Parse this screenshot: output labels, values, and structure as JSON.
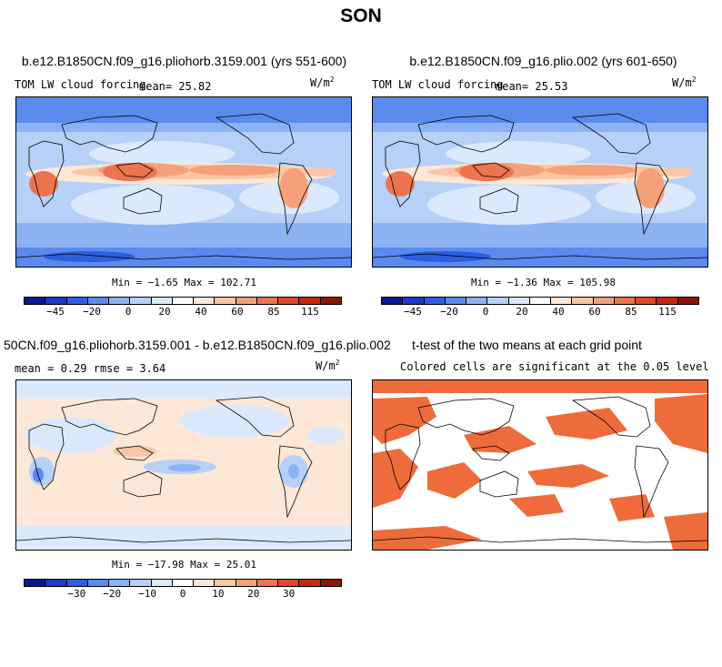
{
  "figure": {
    "title": "SON",
    "units_main": "W/m",
    "units_exp": "2"
  },
  "colors": {
    "scale": [
      "#0a1a8c",
      "#1a3ac8",
      "#2c5ee0",
      "#5a8aee",
      "#8cb2f4",
      "#b6d0f8",
      "#dce9fc",
      "#ffffff",
      "#fde7d6",
      "#f9c6a6",
      "#f4a07a",
      "#ec744e",
      "#de4a28",
      "#c22a10",
      "#8a1606"
    ],
    "sig": "#ee6c3c",
    "coast": "#000000"
  },
  "panels": {
    "p1": {
      "title": "b.e12.B1850CN.f09_g16.pliohorb.3159.001 (yrs 551-600)",
      "var": "TOM LW cloud forcing",
      "mean_label": "mean=",
      "mean": "25.82",
      "minmax": "Min =  −1.65 Max = 102.71",
      "ticks": [
        "−45",
        "−20",
        "0",
        "20",
        "40",
        "60",
        "85",
        "115"
      ],
      "chart_data": {
        "type": "heatmap",
        "field": "TOM LW cloud forcing",
        "mean": 25.82,
        "min": -1.65,
        "max": 102.71,
        "colorbar_levels": [
          -45,
          -20,
          0,
          20,
          40,
          60,
          85,
          115
        ]
      }
    },
    "p2": {
      "title": "b.e12.B1850CN.f09_g16.plio.002 (yrs 601-650)",
      "var": "TOM LW cloud forcing",
      "mean_label": "mean=",
      "mean": "25.53",
      "minmax": "Min =  −1.36 Max = 105.98",
      "ticks": [
        "−45",
        "−20",
        "0",
        "20",
        "40",
        "60",
        "85",
        "115"
      ],
      "chart_data": {
        "type": "heatmap",
        "field": "TOM LW cloud forcing",
        "mean": 25.53,
        "min": -1.36,
        "max": 105.98,
        "colorbar_levels": [
          -45,
          -20,
          0,
          20,
          40,
          60,
          85,
          115
        ]
      }
    },
    "p3": {
      "title": "50CN.f09_g16.pliohorb.3159.001 - b.e12.B1850CN.f09_g16.plio.002",
      "mean_label": "mean =",
      "mean": "0.29",
      "rmse_label": "rmse =",
      "rmse": "3.64",
      "minmax": "Min = −17.98 Max =  25.01",
      "ticks": [
        "−30",
        "−20",
        "−10",
        "0",
        "10",
        "20",
        "30"
      ],
      "chart_data": {
        "type": "heatmap",
        "field": "difference",
        "mean": 0.29,
        "rmse": 3.64,
        "min": -17.98,
        "max": 25.01,
        "colorbar_levels": [
          -30,
          -20,
          -10,
          0,
          10,
          20,
          30
        ]
      }
    },
    "p4": {
      "title": "t-test of the two means at each grid point",
      "subtitle": "Colored cells are significant at the 0.05 level",
      "chart_data": {
        "type": "heatmap",
        "field": "significance mask",
        "significance_level": 0.05
      }
    }
  }
}
